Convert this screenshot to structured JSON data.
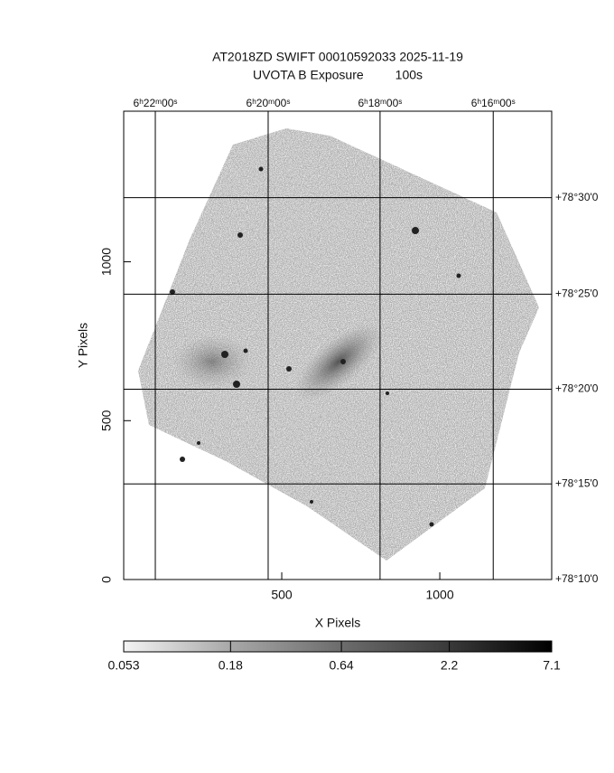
{
  "chart_data": {
    "type": "image",
    "title": "AT2018ZD SWIFT 00010592033 2025-11-19",
    "subtitle": "UVOTA B Exposure         100s",
    "xlabel": "X Pixels",
    "ylabel": "Y Pixels",
    "xlim": [
      0,
      1354
    ],
    "ylim": [
      0,
      1474
    ],
    "xticks": [
      500,
      1000
    ],
    "yticks": [
      0,
      500,
      1000
    ],
    "x2ticks": [
      {
        "value": 100,
        "label": "6ʰ22ᵐ00ˢ"
      },
      {
        "value": 457,
        "label": "6ʰ20ᵐ00ˢ"
      },
      {
        "value": 811,
        "label": "6ʰ18ᵐ00ˢ"
      },
      {
        "value": 1169,
        "label": "6ʰ16ᵐ00ˢ"
      }
    ],
    "y2ticks": [
      {
        "value": 1202,
        "label": "+78°30'0"
      },
      {
        "value": 898,
        "label": "+78°25'0"
      },
      {
        "value": 599,
        "label": "+78°20'0"
      },
      {
        "value": 301,
        "label": "+78°15'0"
      },
      {
        "value": 0,
        "label": "+78°10'0"
      }
    ],
    "grid": true,
    "colorbar": {
      "lim": [
        0.053,
        7.1
      ],
      "ticks": [
        0.053,
        0.18,
        0.64,
        2.2,
        7.1
      ],
      "log": true
    }
  }
}
